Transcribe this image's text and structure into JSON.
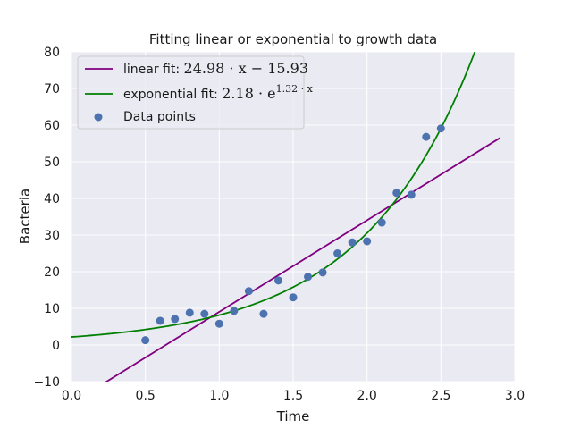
{
  "chart_data": {
    "type": "scatter",
    "title": "Fitting linear or exponential to growth data",
    "xlabel": "Time",
    "ylabel": "Bacteria",
    "xlim": [
      0.0,
      3.0
    ],
    "ylim": [
      -10,
      80
    ],
    "x_ticks": [
      "0.0",
      "0.5",
      "1.0",
      "1.5",
      "2.0",
      "2.5",
      "3.0"
    ],
    "y_ticks": [
      "−10",
      "0",
      "10",
      "20",
      "30",
      "40",
      "50",
      "60",
      "70",
      "80"
    ],
    "grid": true,
    "legend_position": "top-left",
    "series": [
      {
        "name_prefix": "linear fit: ",
        "name_math": "24.98 · x − 15.93",
        "kind": "line",
        "color": "#800080",
        "slope": 24.98,
        "intercept": -15.93,
        "x_range": [
          0.0,
          2.9
        ]
      },
      {
        "name_prefix": "exponential fit: ",
        "name_math_base": "2.18 · e",
        "name_math_exp": "1.32 · x",
        "kind": "line",
        "color": "#008000",
        "coefficient": 2.18,
        "rate": 1.32,
        "x_range": [
          0.0,
          2.9
        ]
      },
      {
        "name": "Data points",
        "kind": "scatter",
        "color": "#4c72b0",
        "x": [
          0.5,
          0.6,
          0.7,
          0.8,
          0.9,
          1.0,
          1.1,
          1.2,
          1.3,
          1.4,
          1.5,
          1.6,
          1.7,
          1.8,
          1.9,
          2.0,
          2.1,
          2.2,
          2.3,
          2.4,
          2.5
        ],
        "y": [
          1.3,
          6.6,
          7.1,
          8.8,
          8.5,
          5.8,
          9.3,
          14.7,
          8.5,
          17.6,
          13.0,
          18.6,
          19.8,
          25.0,
          28.0,
          28.3,
          33.4,
          41.5,
          41.0,
          56.8,
          59.1
        ]
      }
    ]
  }
}
